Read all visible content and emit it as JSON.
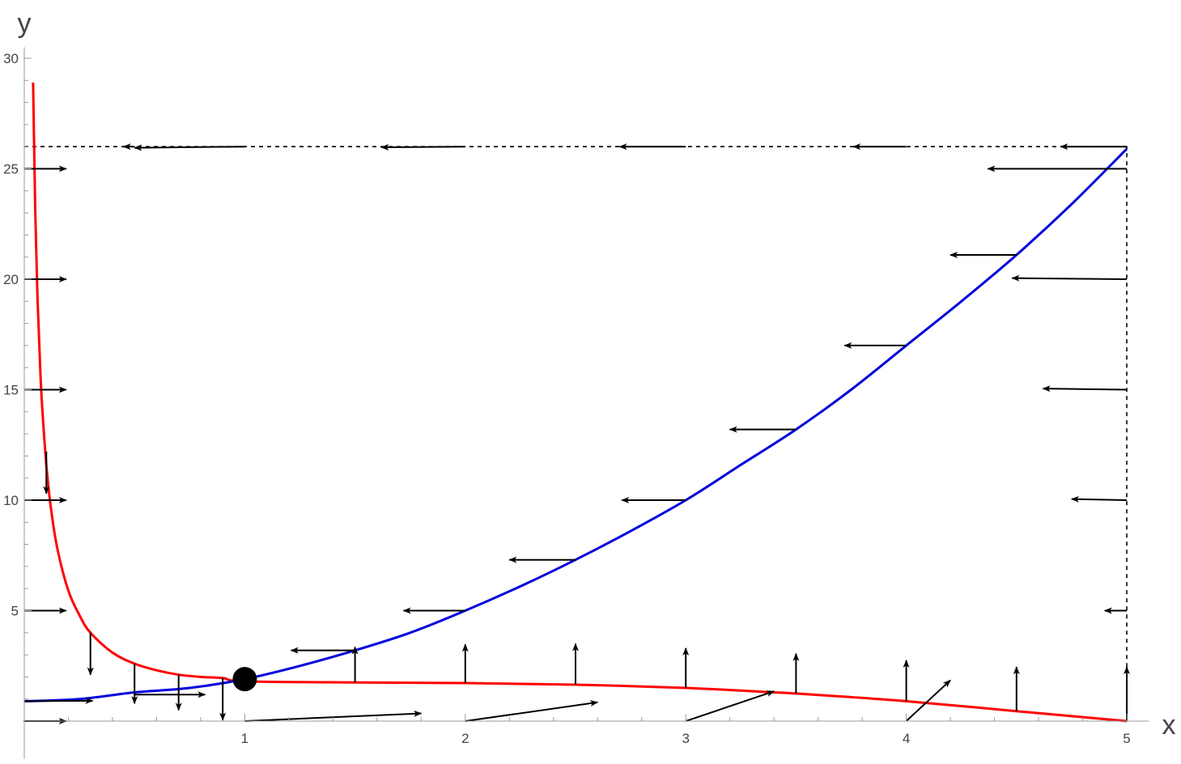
{
  "chart_data": {
    "type": "line",
    "title": "",
    "xlabel": "x",
    "ylabel": "y",
    "xlim": [
      0,
      5.1
    ],
    "ylim": [
      -1.7,
      30.5
    ],
    "x_ticks": [
      1,
      2,
      3,
      4,
      5
    ],
    "x_tick_labels": [
      "1",
      "2",
      "3",
      "4",
      "5"
    ],
    "y_ticks": [
      5,
      10,
      15,
      20,
      25,
      30
    ],
    "y_tick_labels": [
      "5",
      "10",
      "15",
      "20",
      "25",
      "30"
    ],
    "grid": false,
    "legend": "none",
    "series": [
      {
        "color": "#ff0000",
        "x": [
          0.04,
          0.05,
          0.06,
          0.07,
          0.08,
          0.1,
          0.12,
          0.15,
          0.2,
          0.25,
          0.3,
          0.4,
          0.5,
          0.6,
          0.7,
          0.8,
          0.9,
          1.0,
          1.5,
          2.0,
          2.5,
          3.0,
          3.4,
          3.5,
          4.0,
          4.5,
          5.0
        ],
        "y": [
          28.9,
          23.0,
          19.2,
          16.5,
          14.4,
          11.6,
          9.7,
          7.8,
          5.9,
          4.8,
          4.0,
          3.1,
          2.6,
          2.3,
          2.1,
          2.0,
          1.95,
          1.8,
          1.75,
          1.72,
          1.65,
          1.5,
          1.3,
          1.25,
          0.9,
          0.45,
          0.0
        ]
      },
      {
        "color": "#0000dd",
        "x": [
          0.0,
          0.25,
          0.5,
          0.75,
          1.0,
          1.25,
          1.5,
          1.75,
          2.0,
          2.25,
          2.5,
          2.75,
          3.0,
          3.25,
          3.5,
          3.75,
          4.0,
          4.25,
          4.5,
          4.75,
          5.0
        ],
        "y": [
          0.9,
          1.0,
          1.3,
          1.5,
          1.9,
          2.5,
          3.2,
          4.0,
          5.0,
          6.1,
          7.3,
          8.6,
          10.0,
          11.6,
          13.2,
          15.0,
          17.0,
          19.0,
          21.1,
          23.4,
          25.9
        ]
      }
    ],
    "dashed_boundary": {
      "x": [
        0.0,
        5.0,
        5.0
      ],
      "y": [
        26.0,
        26.0,
        0.0
      ]
    },
    "points": [
      {
        "x": 1.0,
        "y": 1.9,
        "color": "#000000"
      }
    ],
    "arrows": [
      {
        "x": 0.0,
        "y": 25,
        "dx": 0.19,
        "dy": 0
      },
      {
        "x": 0.0,
        "y": 20,
        "dx": 0.19,
        "dy": 0
      },
      {
        "x": 0.0,
        "y": 15,
        "dx": 0.19,
        "dy": 0
      },
      {
        "x": 0.0,
        "y": 10,
        "dx": 0.19,
        "dy": 0
      },
      {
        "x": 0.0,
        "y": 5,
        "dx": 0.19,
        "dy": 0
      },
      {
        "x": 0.0,
        "y": 0,
        "dx": 0.19,
        "dy": 0
      },
      {
        "x": 0.5,
        "y": 26,
        "dx": -0.05,
        "dy": 0
      },
      {
        "x": 1.0,
        "y": 26,
        "dx": -0.5,
        "dy": -0.05
      },
      {
        "x": 2.0,
        "y": 26,
        "dx": -0.38,
        "dy": -0.03
      },
      {
        "x": 3.0,
        "y": 26,
        "dx": -0.3,
        "dy": 0
      },
      {
        "x": 4.0,
        "y": 26,
        "dx": -0.24,
        "dy": 0
      },
      {
        "x": 5.0,
        "y": 26,
        "dx": -0.3,
        "dy": 0
      },
      {
        "x": 5.0,
        "y": 25,
        "dx": -0.63,
        "dy": 0
      },
      {
        "x": 5.0,
        "y": 20,
        "dx": -0.52,
        "dy": 0.05
      },
      {
        "x": 5.0,
        "y": 15,
        "dx": -0.38,
        "dy": 0.05
      },
      {
        "x": 5.0,
        "y": 10,
        "dx": -0.25,
        "dy": 0.05
      },
      {
        "x": 5.0,
        "y": 5,
        "dx": -0.1,
        "dy": 0
      },
      {
        "x": 5.0,
        "y": 0,
        "dx": 0,
        "dy": 2.45
      },
      {
        "x": 4.5,
        "y": 21.1,
        "dx": -0.3,
        "dy": 0
      },
      {
        "x": 4.0,
        "y": 17.0,
        "dx": -0.28,
        "dy": 0
      },
      {
        "x": 3.5,
        "y": 13.2,
        "dx": -0.3,
        "dy": 0
      },
      {
        "x": 3.0,
        "y": 10.0,
        "dx": -0.29,
        "dy": 0
      },
      {
        "x": 2.5,
        "y": 7.3,
        "dx": -0.3,
        "dy": 0
      },
      {
        "x": 2.0,
        "y": 5.0,
        "dx": -0.28,
        "dy": 0
      },
      {
        "x": 1.5,
        "y": 3.2,
        "dx": -0.29,
        "dy": 0
      },
      {
        "x": 0.1,
        "y": 12.2,
        "dx": 0,
        "dy": -1.9
      },
      {
        "x": 0.3,
        "y": 4.0,
        "dx": 0,
        "dy": -1.9
      },
      {
        "x": 0.5,
        "y": 2.6,
        "dx": 0,
        "dy": -1.8
      },
      {
        "x": 0.7,
        "y": 2.1,
        "dx": 0,
        "dy": -1.6
      },
      {
        "x": 0.9,
        "y": 1.95,
        "dx": 0,
        "dy": -1.9
      },
      {
        "x": 0.0,
        "y": 0.9,
        "dx": 0.31,
        "dy": 0.02
      },
      {
        "x": 0.5,
        "y": 1.2,
        "dx": 0.32,
        "dy": 0
      },
      {
        "x": 1.5,
        "y": 1.75,
        "dx": 0,
        "dy": 1.6
      },
      {
        "x": 2.0,
        "y": 1.72,
        "dx": 0,
        "dy": 1.75
      },
      {
        "x": 2.5,
        "y": 1.65,
        "dx": 0,
        "dy": 1.85
      },
      {
        "x": 3.0,
        "y": 1.5,
        "dx": 0,
        "dy": 1.8
      },
      {
        "x": 3.5,
        "y": 1.25,
        "dx": 0,
        "dy": 1.8
      },
      {
        "x": 4.0,
        "y": 0.9,
        "dx": 0,
        "dy": 1.85
      },
      {
        "x": 4.5,
        "y": 0.45,
        "dx": 0,
        "dy": 2.0
      },
      {
        "x": 1.0,
        "y": 0,
        "dx": 0.8,
        "dy": 0.35
      },
      {
        "x": 2.0,
        "y": 0,
        "dx": 0.6,
        "dy": 0.85
      },
      {
        "x": 3.0,
        "y": 0,
        "dx": 0.4,
        "dy": 1.35
      },
      {
        "x": 4.0,
        "y": 0,
        "dx": 0.2,
        "dy": 1.85
      }
    ]
  }
}
